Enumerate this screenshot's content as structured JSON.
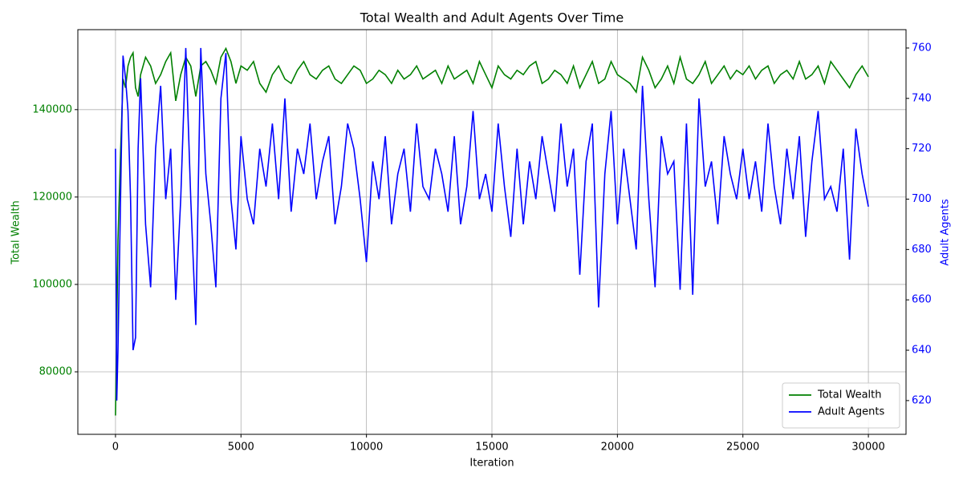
{
  "chart_data": {
    "type": "line",
    "title": "Total Wealth and Adult Agents Over Time",
    "x_label": "Iteration",
    "y_label": "Total Wealth",
    "y2_label": "Adult Agents",
    "x": [
      0,
      50,
      100,
      200,
      300,
      400,
      500,
      600,
      700,
      800,
      900,
      1000,
      1200,
      1400,
      1600,
      1800,
      2000,
      2200,
      2400,
      2600,
      2800,
      3000,
      3200,
      3400,
      3600,
      3800,
      4000,
      4200,
      4400,
      4600,
      4800,
      5000,
      5250,
      5500,
      5750,
      6000,
      6250,
      6500,
      6750,
      7000,
      7250,
      7500,
      7750,
      8000,
      8250,
      8500,
      8750,
      9000,
      9250,
      9500,
      9750,
      10000,
      10250,
      10500,
      10750,
      11000,
      11250,
      11500,
      11750,
      12000,
      12250,
      12500,
      12750,
      13000,
      13250,
      13500,
      13750,
      14000,
      14250,
      14500,
      14750,
      15000,
      15250,
      15500,
      15750,
      16000,
      16250,
      16500,
      16750,
      17000,
      17250,
      17500,
      17750,
      18000,
      18250,
      18500,
      18750,
      19000,
      19250,
      19500,
      19750,
      20000,
      20250,
      20500,
      20750,
      21000,
      21250,
      21500,
      21750,
      22000,
      22250,
      22500,
      22750,
      23000,
      23250,
      23500,
      23750,
      24000,
      24250,
      24500,
      24750,
      25000,
      25250,
      25500,
      25750,
      26000,
      26250,
      26500,
      26750,
      27000,
      27250,
      27500,
      27750,
      28000,
      28250,
      28500,
      28750,
      29000,
      29250,
      29500,
      29750,
      30000
    ],
    "series": [
      {
        "name": "Total Wealth",
        "color": "#008000",
        "axis": "y",
        "values": [
          70000,
          90000,
          110000,
          130000,
          147000,
          145000,
          150000,
          152000,
          153000,
          145000,
          143000,
          148000,
          152000,
          150000,
          146000,
          148000,
          151000,
          153000,
          142000,
          148000,
          152000,
          150000,
          143000,
          150000,
          151000,
          149000,
          146000,
          152000,
          154000,
          151000,
          146000,
          150000,
          149000,
          151000,
          146000,
          144000,
          148000,
          150000,
          147000,
          146000,
          149000,
          151000,
          148000,
          147000,
          149000,
          150000,
          147000,
          146000,
          148000,
          150000,
          149000,
          146000,
          147000,
          149000,
          148000,
          146000,
          149000,
          147000,
          148000,
          150000,
          147000,
          148000,
          149000,
          146000,
          150000,
          147000,
          148000,
          149000,
          146000,
          151000,
          148000,
          145000,
          150000,
          148000,
          147000,
          149000,
          148000,
          150000,
          151000,
          146000,
          147000,
          149000,
          148000,
          146000,
          150000,
          145000,
          148000,
          151000,
          146000,
          147000,
          151000,
          148000,
          147000,
          146000,
          144000,
          152000,
          149000,
          145000,
          147000,
          150000,
          146000,
          152000,
          147000,
          146000,
          148000,
          151000,
          146000,
          148000,
          150000,
          147000,
          149000,
          148000,
          150000,
          147000,
          149000,
          150000,
          146000,
          148000,
          149000,
          147000,
          151000,
          147000,
          148000,
          150000,
          146000,
          151000,
          149000,
          147000,
          145000,
          148000,
          150000,
          147500
        ]
      },
      {
        "name": "Adult Agents",
        "color": "#0000ff",
        "axis": "y2",
        "values": [
          720,
          620,
          640,
          700,
          757,
          748,
          735,
          700,
          640,
          645,
          720,
          748,
          690,
          665,
          720,
          745,
          700,
          720,
          660,
          700,
          760,
          700,
          650,
          760,
          710,
          690,
          665,
          740,
          758,
          700,
          680,
          725,
          700,
          690,
          720,
          705,
          730,
          700,
          740,
          695,
          720,
          710,
          730,
          700,
          715,
          725,
          690,
          705,
          730,
          720,
          700,
          675,
          715,
          700,
          725,
          690,
          710,
          720,
          695,
          730,
          705,
          700,
          720,
          710,
          695,
          725,
          690,
          705,
          735,
          700,
          710,
          695,
          730,
          705,
          685,
          720,
          690,
          715,
          700,
          725,
          710,
          695,
          730,
          705,
          720,
          670,
          715,
          730,
          657,
          710,
          735,
          690,
          720,
          700,
          680,
          745,
          700,
          665,
          725,
          710,
          715,
          664,
          730,
          662,
          740,
          705,
          715,
          690,
          725,
          710,
          700,
          720,
          700,
          715,
          695,
          730,
          705,
          690,
          720,
          700,
          725,
          685,
          715,
          735,
          700,
          705,
          695,
          720,
          676,
          728,
          710,
          697
        ]
      }
    ],
    "xlim": [
      -1500,
      31500
    ],
    "xticks": [
      0,
      5000,
      10000,
      15000,
      20000,
      25000,
      30000
    ],
    "ylim": [
      65700,
      158300
    ],
    "yticks": [
      80000,
      100000,
      120000,
      140000
    ],
    "y2lim": [
      606.6,
      767.3
    ],
    "y2ticks": [
      620,
      640,
      660,
      680,
      700,
      720,
      740,
      760
    ],
    "grid": true,
    "legend": "lower right"
  }
}
